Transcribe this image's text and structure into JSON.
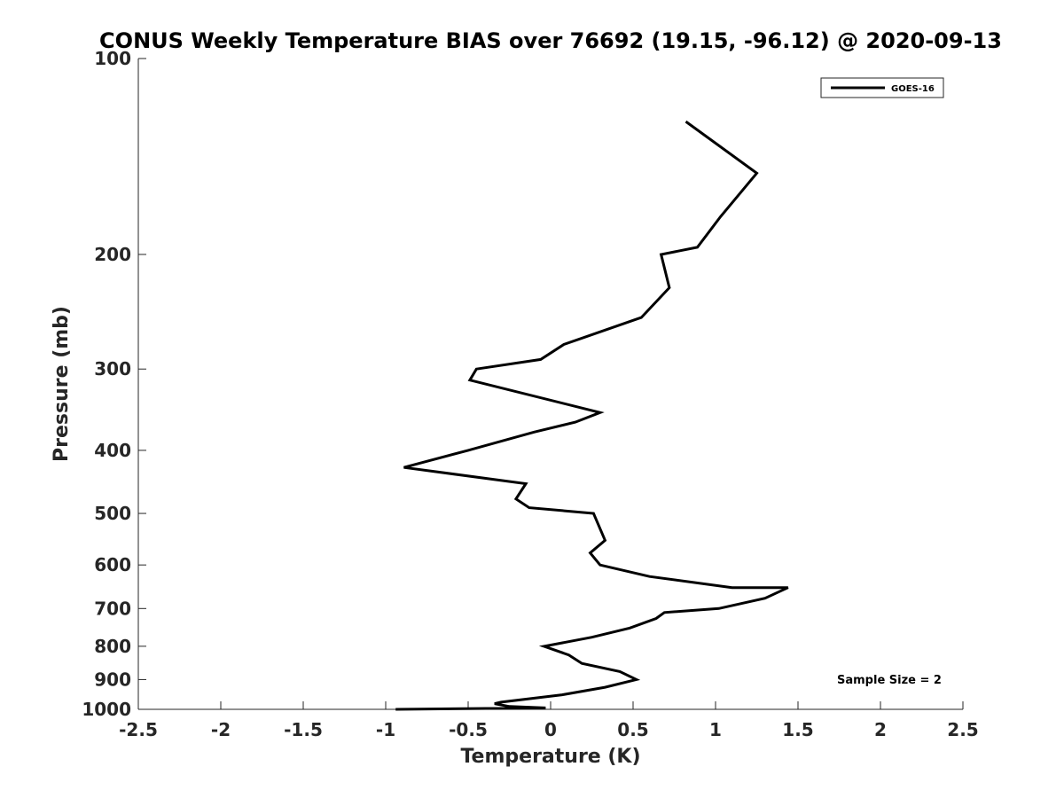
{
  "chart_data": {
    "type": "line",
    "title": "CONUS Weekly Temperature BIAS over 76692 (19.15, -96.12) @ 2020-09-13",
    "xlabel": "Temperature (K)",
    "ylabel": "Pressure (mb)",
    "xlim": [
      -2.5,
      2.5
    ],
    "ylim": [
      100,
      1000
    ],
    "y_scale": "log",
    "y_reversed": true,
    "x_ticks": [
      "-2.5",
      "-2",
      "-1.5",
      "-1",
      "-0.5",
      "0",
      "0.5",
      "1",
      "1.5",
      "2",
      "2.5"
    ],
    "y_ticks": [
      "100",
      "200",
      "300",
      "400",
      "500",
      "600",
      "700",
      "800",
      "900",
      "1000"
    ],
    "grid": false,
    "legend_position": "top-right",
    "series": [
      {
        "name": "GOES-16",
        "color": "#000000",
        "points": [
          {
            "x": 0.82,
            "p": 125
          },
          {
            "x": 1.25,
            "p": 150
          },
          {
            "x": 1.03,
            "p": 175
          },
          {
            "x": 0.89,
            "p": 195
          },
          {
            "x": 0.67,
            "p": 200
          },
          {
            "x": 0.72,
            "p": 225
          },
          {
            "x": 0.55,
            "p": 250
          },
          {
            "x": 0.08,
            "p": 275
          },
          {
            "x": -0.06,
            "p": 290
          },
          {
            "x": -0.45,
            "p": 300
          },
          {
            "x": -0.49,
            "p": 312
          },
          {
            "x": 0.3,
            "p": 350
          },
          {
            "x": 0.15,
            "p": 362
          },
          {
            "x": -0.1,
            "p": 375
          },
          {
            "x": -0.5,
            "p": 400
          },
          {
            "x": -0.89,
            "p": 425
          },
          {
            "x": -0.15,
            "p": 450
          },
          {
            "x": -0.21,
            "p": 475
          },
          {
            "x": -0.13,
            "p": 490
          },
          {
            "x": 0.26,
            "p": 500
          },
          {
            "x": 0.33,
            "p": 550
          },
          {
            "x": 0.24,
            "p": 575
          },
          {
            "x": 0.3,
            "p": 600
          },
          {
            "x": 0.6,
            "p": 625
          },
          {
            "x": 1.1,
            "p": 650
          },
          {
            "x": 1.44,
            "p": 650
          },
          {
            "x": 1.3,
            "p": 675
          },
          {
            "x": 1.02,
            "p": 700
          },
          {
            "x": 0.69,
            "p": 710
          },
          {
            "x": 0.64,
            "p": 725
          },
          {
            "x": 0.48,
            "p": 750
          },
          {
            "x": 0.25,
            "p": 775
          },
          {
            "x": -0.04,
            "p": 800
          },
          {
            "x": 0.11,
            "p": 825
          },
          {
            "x": 0.19,
            "p": 850
          },
          {
            "x": 0.42,
            "p": 875
          },
          {
            "x": 0.52,
            "p": 900
          },
          {
            "x": 0.33,
            "p": 925
          },
          {
            "x": 0.07,
            "p": 950
          },
          {
            "x": -0.3,
            "p": 975
          },
          {
            "x": -0.34,
            "p": 980
          },
          {
            "x": -0.25,
            "p": 990
          },
          {
            "x": -0.03,
            "p": 995
          },
          {
            "x": -0.94,
            "p": 1000
          }
        ]
      }
    ],
    "annotation": "Sample Size = 2"
  }
}
